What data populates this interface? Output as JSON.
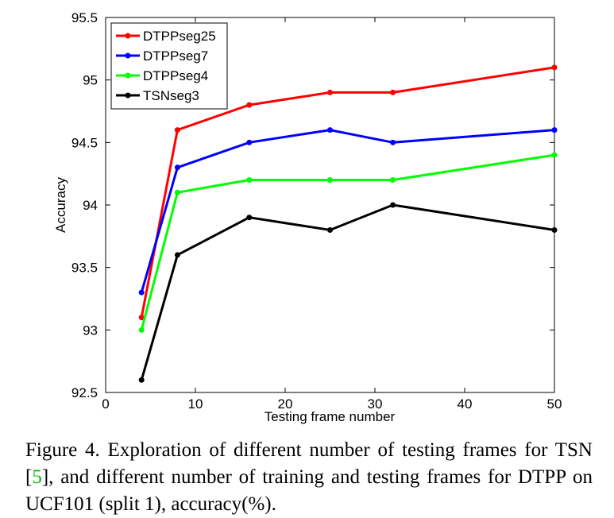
{
  "chart_data": {
    "type": "line",
    "xlabel": "Testing frame number",
    "ylabel": "Accuracy",
    "xlim": [
      0,
      50
    ],
    "ylim": [
      92.5,
      95.5
    ],
    "xticks": [
      "0",
      "10",
      "20",
      "30",
      "40",
      "50"
    ],
    "yticks": [
      "92.5",
      "93",
      "93.5",
      "94",
      "94.5",
      "95",
      "95.5"
    ],
    "grid": false,
    "legend_position": "top-left",
    "series": [
      {
        "name": "DTPPseg25",
        "color": "#ff0000",
        "x": [
          4,
          8,
          16,
          25,
          32,
          50
        ],
        "y": [
          93.1,
          94.6,
          94.8,
          94.9,
          94.9,
          95.1
        ]
      },
      {
        "name": "DTPPseg7",
        "color": "#0000ff",
        "x": [
          4,
          8,
          16,
          25,
          32,
          50
        ],
        "y": [
          93.3,
          94.3,
          94.5,
          94.6,
          94.5,
          94.6
        ]
      },
      {
        "name": "DTPPseg4",
        "color": "#00ff00",
        "x": [
          4,
          8,
          16,
          25,
          32,
          50
        ],
        "y": [
          93.0,
          94.1,
          94.2,
          94.2,
          94.2,
          94.4
        ]
      },
      {
        "name": "TSNseg3",
        "color": "#000000",
        "x": [
          4,
          8,
          16,
          25,
          32,
          50
        ],
        "y": [
          92.6,
          93.6,
          93.9,
          93.8,
          94.0,
          93.8
        ]
      }
    ]
  },
  "caption": {
    "part1": "Figure 4. Exploration of different number of testing frames for TSN [",
    "ref": "5",
    "part2": "], and different number of training and testing frames for DTPP on UCF101 (split 1), accuracy(%)."
  }
}
